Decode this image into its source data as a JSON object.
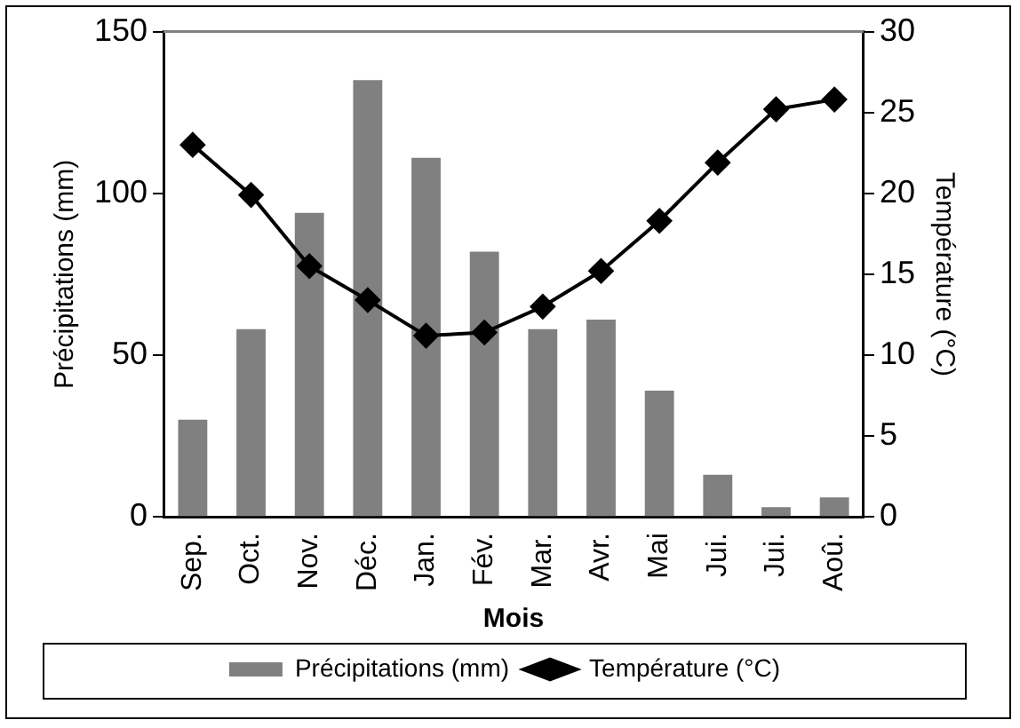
{
  "chart_data": {
    "type": "bar",
    "xlabel": "Mois",
    "ylabel": "Précipitations (mm)",
    "y2label": "Température (°C)",
    "categories": [
      "Sep.",
      "Oct.",
      "Nov.",
      "Déc.",
      "Jan.",
      "Fév.",
      "Mar.",
      "Avr.",
      "Mai",
      "Jui.",
      "Jui.",
      "Aoû."
    ],
    "series": [
      {
        "name": "Précipitations (mm)",
        "color": "#808080",
        "values": [
          30,
          58,
          94,
          135,
          111,
          82,
          58,
          61,
          39,
          13,
          3,
          6
        ]
      },
      {
        "name": "Température (°C)",
        "type": "line",
        "axis": "y2",
        "color": "#000000",
        "marker": "diamond",
        "values": [
          23.0,
          19.9,
          15.5,
          13.4,
          11.2,
          11.4,
          13.0,
          15.2,
          18.3,
          21.9,
          25.2,
          25.8
        ]
      }
    ],
    "ylim": [
      0,
      150
    ],
    "yticks": [
      0,
      50,
      100,
      150
    ],
    "y2lim": [
      0,
      30
    ],
    "y2ticks": [
      0,
      5,
      10,
      15,
      20,
      25,
      30
    ],
    "grid": false,
    "legend": "bottom"
  }
}
